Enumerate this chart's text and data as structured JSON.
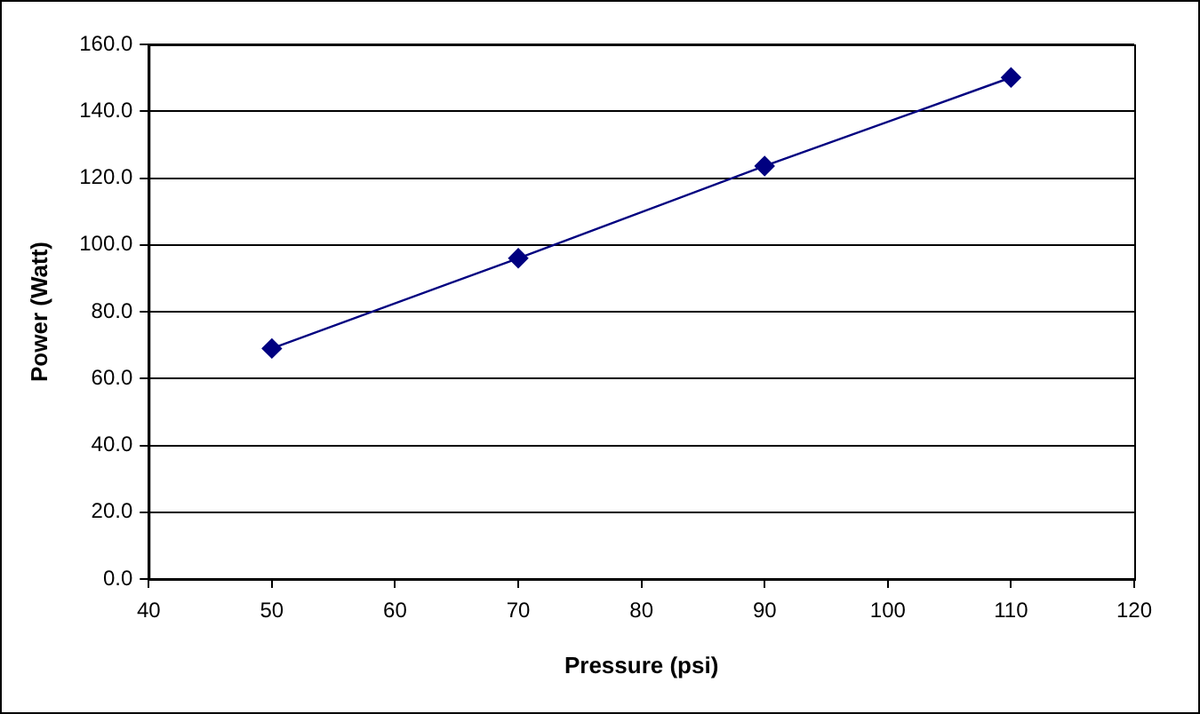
{
  "chart_data": {
    "type": "line",
    "xlabel": "Pressure (psi)",
    "ylabel": "Power (Watt)",
    "x": [
      50,
      70,
      90,
      110
    ],
    "series": [
      {
        "color": "#000080",
        "values": [
          69.0,
          96.0,
          123.6,
          150.1
        ]
      }
    ],
    "xlim": [
      40,
      120
    ],
    "xticks": [
      40,
      50,
      60,
      70,
      80,
      90,
      100,
      110,
      120
    ],
    "ylim": [
      0,
      160
    ],
    "yticks": [
      {
        "value": 0,
        "label": "0.0"
      },
      {
        "value": 20,
        "label": "20.0"
      },
      {
        "value": 40,
        "label": "40.0"
      },
      {
        "value": 60,
        "label": "60.0"
      },
      {
        "value": 80,
        "label": "80.0"
      },
      {
        "value": 100,
        "label": "100.0"
      },
      {
        "value": 120,
        "label": "120.0"
      },
      {
        "value": 140,
        "label": "140.0"
      },
      {
        "value": 160,
        "label": "160.0"
      }
    ],
    "grid": "y",
    "legend": false,
    "marker": "diamond",
    "line_style": "solid"
  }
}
